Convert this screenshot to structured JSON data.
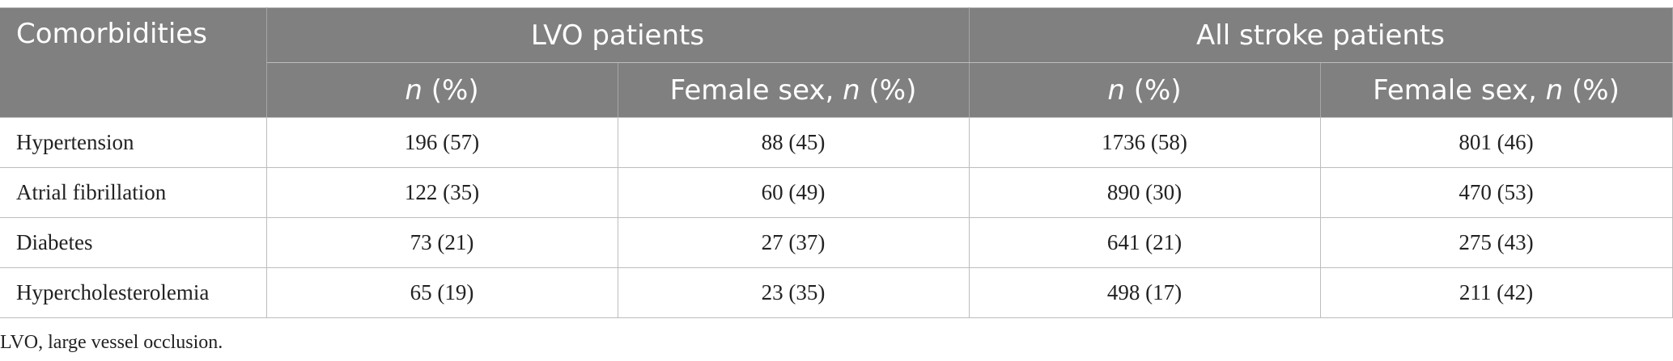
{
  "table": {
    "header": {
      "first_col": "Comorbidities",
      "groups": [
        "LVO patients",
        "All stroke patients"
      ],
      "sub": [
        {
          "em": "n",
          "suffix": " (%)"
        },
        {
          "prefix": "Female sex, ",
          "em": "n",
          "suffix": " (%)"
        },
        {
          "em": "n",
          "suffix": " (%)"
        },
        {
          "prefix": "Female sex, ",
          "em": "n",
          "suffix": " (%)"
        }
      ]
    },
    "rows": [
      {
        "label": "Hypertension",
        "cells": [
          "196 (57)",
          "88 (45)",
          "1736 (58)",
          "801 (46)"
        ]
      },
      {
        "label": "Atrial fibrillation",
        "cells": [
          "122 (35)",
          "60 (49)",
          "890 (30)",
          "470 (53)"
        ]
      },
      {
        "label": "Diabetes",
        "cells": [
          "73 (21)",
          "27 (37)",
          "641 (21)",
          "275 (43)"
        ]
      },
      {
        "label": "Hypercholesterolemia",
        "cells": [
          "65 (19)",
          "23 (35)",
          "498 (17)",
          "211 (42)"
        ]
      }
    ]
  },
  "footnote": "LVO, large vessel occlusion.",
  "colors": {
    "header_bg": "#808080",
    "header_text": "#ffffff",
    "grid": "#bdbdbd",
    "body_text": "#222222"
  }
}
